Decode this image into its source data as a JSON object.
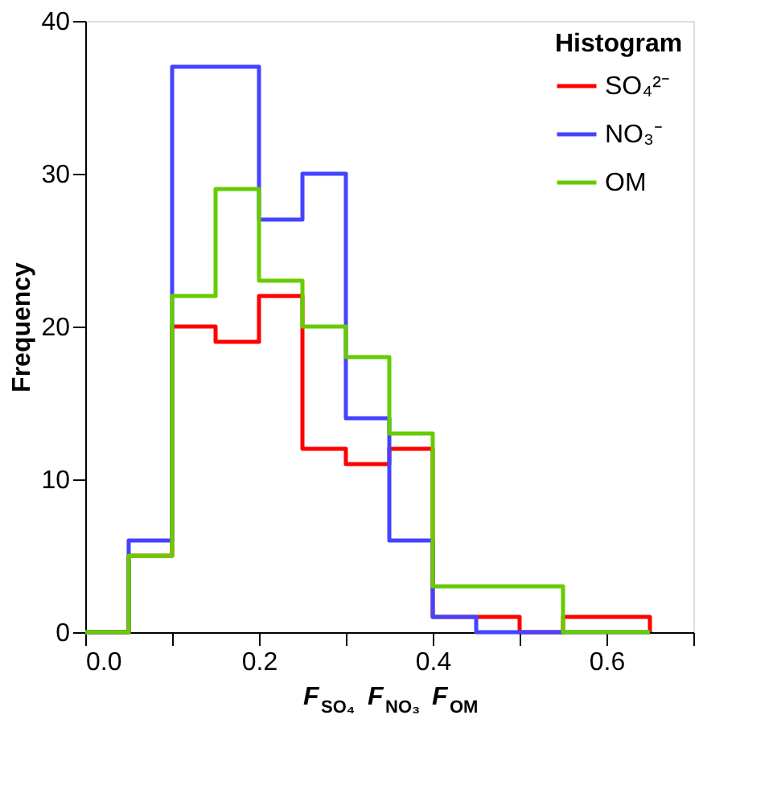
{
  "chart_data": {
    "type": "histogram",
    "xlabel": "F$_{SO₄}$ F$_{NO₃}$ F$_{OM}$",
    "ylabel": "Frequency",
    "legend_title": "Histogram",
    "legend": "top right",
    "grid": false,
    "bins": [
      0,
      0.05,
      0.1,
      0.15,
      0.2,
      0.25,
      0.3,
      0.35,
      0.4,
      0.45,
      0.5,
      0.55,
      0.6,
      0.65
    ],
    "series": [
      {
        "name": "SO₄²⁻",
        "color": "#ff0000",
        "values": [
          0,
          5,
          20,
          19,
          22,
          12,
          11,
          12,
          1,
          1,
          0,
          1,
          1
        ]
      },
      {
        "name": "NO₃⁻",
        "color": "#4444ff",
        "values": [
          0,
          6,
          37,
          37,
          27,
          30,
          14,
          6,
          1,
          0,
          0,
          0,
          0
        ]
      },
      {
        "name": "OM",
        "color": "#66cc00",
        "values": [
          0,
          5,
          22,
          29,
          23,
          20,
          18,
          13,
          3,
          3,
          3,
          0,
          0
        ]
      }
    ],
    "xlim": [
      0,
      0.7
    ],
    "xticks": [
      {
        "value": 0,
        "label": "0.0"
      },
      {
        "value": 0.1,
        "label": null
      },
      {
        "value": 0.2,
        "label": "0.2"
      },
      {
        "value": 0.3,
        "label": null
      },
      {
        "value": 0.4,
        "label": "0.4"
      },
      {
        "value": 0.5,
        "label": null
      },
      {
        "value": 0.6,
        "label": "0.6"
      },
      {
        "value": 0.7,
        "label": null
      }
    ],
    "ylim": [
      0,
      40
    ],
    "yticks": [
      0,
      10,
      20,
      30,
      40
    ]
  }
}
